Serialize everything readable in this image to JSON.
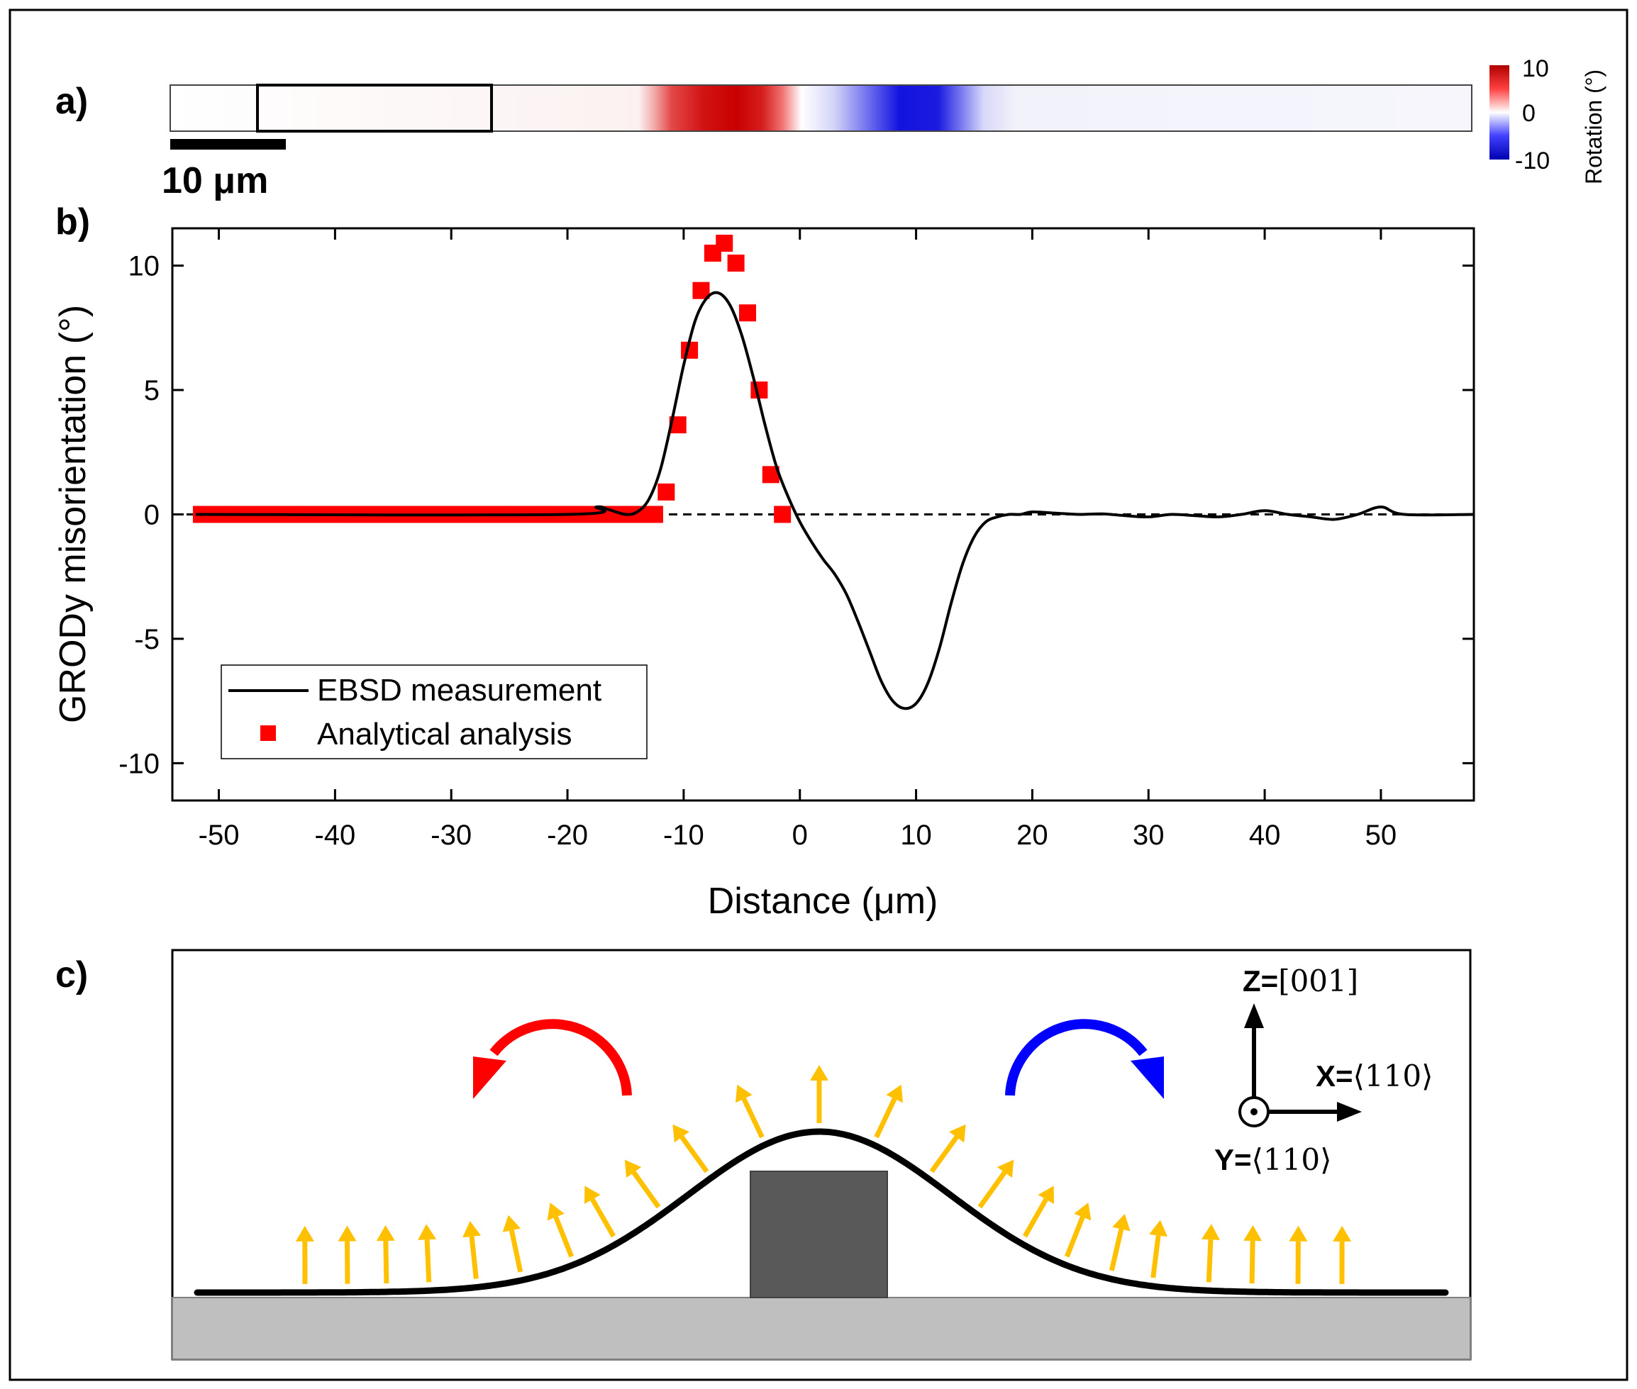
{
  "panels": {
    "a": "a)",
    "b": "b)",
    "c": "c)"
  },
  "scale_bar": {
    "label": "10 μm"
  },
  "colorbar": {
    "ticks": [
      "10",
      "0",
      "-10"
    ],
    "label": "Rotation (°)",
    "colors": {
      "positive": "#c00000",
      "zero": "#ffffff",
      "negative": "#0000d0"
    }
  },
  "chart_data": {
    "type": "line",
    "xlabel": "Distance (μm)",
    "ylabel": "GRODy misorientation (°)",
    "xlim": [
      -54,
      58
    ],
    "ylim": [
      -11.5,
      11.5
    ],
    "xticks": [
      -50,
      -40,
      -30,
      -20,
      -10,
      0,
      10,
      20,
      30,
      40,
      50
    ],
    "yticks": [
      -10,
      -5,
      0,
      5,
      10
    ],
    "xtick_labels": [
      "-50",
      "-40",
      "-30",
      "-20",
      "-10",
      "0",
      "10",
      "20",
      "30",
      "40",
      "50"
    ],
    "ytick_labels": [
      "-10",
      "-5",
      "0",
      "5",
      "10"
    ],
    "reference_line": {
      "y": 0,
      "style": "dashed"
    },
    "legend": {
      "position": "bottom-left",
      "entries": [
        "EBSD measurement",
        "Analytical analysis"
      ]
    },
    "series": [
      {
        "name": "EBSD measurement",
        "style": "line",
        "color": "#000000",
        "x": [
          -52,
          -20,
          -17.5,
          -16.5,
          -15,
          -14,
          -13,
          -12,
          -11,
          -10,
          -9,
          -8,
          -7,
          -6,
          -5,
          -4,
          -3,
          -2,
          -1,
          0,
          1,
          2,
          3,
          4,
          5,
          6,
          7,
          8,
          9,
          10,
          11,
          12,
          13,
          14,
          15,
          16,
          17,
          18,
          19,
          20,
          22,
          24,
          26,
          28,
          30,
          32,
          34,
          36,
          38,
          40,
          42,
          44,
          46,
          48,
          50,
          52,
          58
        ],
        "y": [
          0,
          0,
          0.3,
          0.2,
          0,
          0.1,
          0.6,
          1.8,
          3.8,
          6.0,
          7.8,
          8.7,
          8.9,
          8.4,
          7.2,
          5.5,
          3.6,
          1.9,
          0.7,
          -0.3,
          -1.1,
          -1.8,
          -2.4,
          -3.2,
          -4.3,
          -5.5,
          -6.7,
          -7.5,
          -7.8,
          -7.6,
          -6.8,
          -5.4,
          -3.6,
          -2.0,
          -0.9,
          -0.3,
          -0.1,
          0,
          0,
          0.1,
          0.05,
          0,
          0.02,
          -0.05,
          -0.1,
          0,
          -0.05,
          -0.1,
          0,
          0.15,
          0,
          -0.1,
          -0.2,
          0,
          0.3,
          0,
          0
        ]
      },
      {
        "name": "Analytical analysis",
        "style": "markers",
        "marker": "square",
        "color": "#ff0000",
        "x": [
          -51.5,
          -51,
          -50,
          -49,
          -48,
          -47,
          -46,
          -45,
          -44,
          -43,
          -42,
          -41,
          -40,
          -39,
          -38,
          -37,
          -36,
          -35,
          -34,
          -33,
          -32,
          -31,
          -30,
          -29,
          -28,
          -27,
          -26,
          -25,
          -24,
          -23,
          -22,
          -21,
          -20,
          -19,
          -18,
          -17,
          -16,
          -15,
          -14,
          -13,
          -12.5,
          -11.5,
          -10.5,
          -9.5,
          -8.5,
          -7.5,
          -6.5,
          -5.5,
          -4.5,
          -3.5,
          -2.5,
          -1.5
        ],
        "y": [
          0,
          0,
          0,
          0,
          0,
          0,
          0,
          0,
          0,
          0,
          0,
          0,
          0,
          0,
          0,
          0,
          0,
          0,
          0,
          0,
          0,
          0,
          0,
          0,
          0,
          0,
          0,
          0,
          0,
          0,
          0,
          0,
          0,
          0,
          0,
          0,
          0,
          0,
          0,
          0,
          0,
          0.9,
          3.6,
          6.6,
          9.0,
          10.5,
          10.9,
          10.1,
          8.1,
          5.0,
          1.6,
          0
        ]
      }
    ]
  },
  "schematic": {
    "axes": {
      "z": {
        "bold": "Z=",
        "value": "[001]"
      },
      "x": {
        "bold": "X=",
        "value": "⟨110⟩"
      },
      "y": {
        "bold": "Y=",
        "value": "⟨110⟩"
      }
    },
    "colors": {
      "arrows": "#ffc000",
      "left_rotation": "#ff0000",
      "right_rotation": "#0000ff",
      "substrate": "#bfbfbf",
      "block": "#595959"
    }
  }
}
